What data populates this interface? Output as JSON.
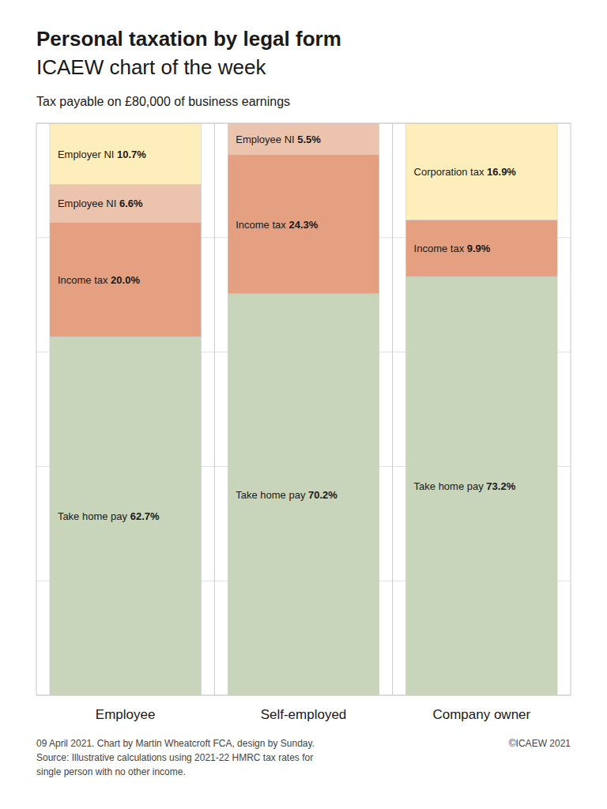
{
  "chart_data": {
    "type": "bar",
    "stacked": true,
    "title": "Personal taxation by legal form",
    "subtitle": "ICAEW chart of the week",
    "annotations": [
      "Tax payable on £80,000 of business earnings",
      "09 April 2021.   Chart by Martin Wheatcroft FCA, design by Sunday.\nSource: Illustrative calculations using 2021-22 HMRC tax rates for\nsingle person with no other income.",
      "©ICAEW 2021"
    ],
    "categories": [
      "Employee",
      "Self-employed",
      "Company owner"
    ],
    "series": [
      {
        "name": "Take home pay",
        "color": "#c9d5ba",
        "values": [
          62.7,
          70.2,
          73.2
        ],
        "value_labels": [
          "62.7%",
          "70.2%",
          "73.2%"
        ]
      },
      {
        "name": "Income tax",
        "color": "#e4a080",
        "values": [
          20.0,
          24.3,
          9.9
        ],
        "value_labels": [
          "20.0%",
          "24.3%",
          "9.9%"
        ]
      },
      {
        "name": "Employee NI",
        "color": "#ecc4ae",
        "values": [
          6.6,
          5.5,
          null
        ],
        "value_labels": [
          "6.6%",
          "5.5%",
          null
        ]
      },
      {
        "name": "Employer NI",
        "color": "#fdeebb",
        "values": [
          10.7,
          null,
          null
        ],
        "value_labels": [
          "10.7%",
          null,
          null
        ]
      },
      {
        "name": "Corporation tax",
        "color": "#fdeebb",
        "values": [
          null,
          null,
          16.9
        ],
        "value_labels": [
          null,
          null,
          "16.9%"
        ]
      }
    ],
    "ylim": [
      0,
      100
    ],
    "yticks": [
      0,
      20,
      40,
      60,
      80,
      100
    ],
    "grid": true,
    "tick_labels": false,
    "data_labels": true
  }
}
